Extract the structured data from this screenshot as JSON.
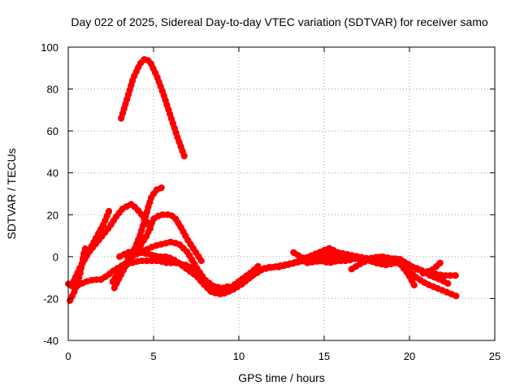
{
  "chart_data": {
    "type": "line",
    "title": "Day 022 of 2025, Sidereal Day-to-day VTEC variation (SDTVAR) for receiver samo",
    "xlabel": "GPS time / hours",
    "ylabel": "SDTVAR / TECUs",
    "xlim": [
      0,
      25
    ],
    "ylim": [
      -40,
      100
    ],
    "xticks": [
      0,
      5,
      10,
      15,
      20,
      25
    ],
    "yticks": [
      -40,
      -20,
      0,
      20,
      40,
      60,
      80,
      100
    ],
    "grid": true,
    "series_color": "#ff0000",
    "series": [
      {
        "name": "arc-high",
        "points": [
          [
            3.1,
            66
          ],
          [
            3.4,
            74
          ],
          [
            3.8,
            85
          ],
          [
            4.2,
            92
          ],
          [
            4.5,
            94.5
          ],
          [
            4.8,
            93
          ],
          [
            5.2,
            86
          ],
          [
            5.6,
            77
          ],
          [
            6.0,
            67
          ],
          [
            6.4,
            57
          ],
          [
            6.8,
            48
          ]
        ]
      },
      {
        "name": "arc-a",
        "points": [
          [
            0.2,
            -14
          ],
          [
            0.5,
            -9
          ],
          [
            0.9,
            -2
          ],
          [
            1.3,
            4
          ],
          [
            1.7,
            10
          ],
          [
            2.1,
            16
          ],
          [
            2.4,
            22
          ]
        ]
      },
      {
        "name": "arc-b",
        "points": [
          [
            0.3,
            -12
          ],
          [
            0.7,
            -5
          ],
          [
            1.2,
            2
          ],
          [
            1.6,
            6
          ],
          [
            2.0,
            10
          ],
          [
            2.4,
            14
          ],
          [
            2.8,
            19
          ],
          [
            3.2,
            23
          ],
          [
            3.7,
            25
          ],
          [
            4.0,
            23
          ],
          [
            4.4,
            19
          ],
          [
            4.9,
            13
          ]
        ]
      },
      {
        "name": "arc-c",
        "points": [
          [
            0.0,
            -13
          ],
          [
            0.5,
            -14
          ],
          [
            1.0,
            -12
          ],
          [
            1.5,
            -11
          ],
          [
            1.9,
            -11
          ],
          [
            2.3,
            -9
          ],
          [
            2.6,
            -7
          ],
          [
            3.0,
            -5
          ],
          [
            3.4,
            -3
          ],
          [
            3.8,
            1
          ],
          [
            4.2,
            5
          ],
          [
            4.6,
            10
          ],
          [
            5.0,
            18
          ],
          [
            5.4,
            20
          ],
          [
            6.0,
            20
          ],
          [
            6.3,
            18
          ],
          [
            6.6,
            14
          ],
          [
            7.0,
            8
          ],
          [
            7.4,
            3
          ],
          [
            7.8,
            -2
          ]
        ]
      },
      {
        "name": "arc-d",
        "points": [
          [
            2.7,
            -15
          ],
          [
            3.0,
            -10
          ],
          [
            3.4,
            -4
          ],
          [
            3.8,
            2
          ],
          [
            4.2,
            10
          ],
          [
            4.5,
            18
          ],
          [
            4.7,
            24
          ],
          [
            4.9,
            29
          ],
          [
            5.2,
            32
          ],
          [
            5.5,
            33
          ]
        ]
      },
      {
        "name": "arc-e",
        "points": [
          [
            0.1,
            -21
          ],
          [
            0.4,
            -16
          ],
          [
            0.7,
            -8
          ],
          [
            0.9,
            1
          ],
          [
            1.0,
            4
          ]
        ]
      },
      {
        "name": "arc-f",
        "points": [
          [
            3.0,
            0
          ],
          [
            3.5,
            2
          ],
          [
            4.0,
            3
          ],
          [
            4.5,
            3
          ],
          [
            5.0,
            5
          ],
          [
            5.5,
            6
          ],
          [
            6.0,
            7
          ],
          [
            6.5,
            6
          ],
          [
            7.0,
            2
          ],
          [
            7.5,
            -5
          ],
          [
            8.0,
            -11
          ],
          [
            8.5,
            -14
          ],
          [
            9.0,
            -15
          ],
          [
            9.5,
            -14
          ]
        ]
      },
      {
        "name": "arc-g",
        "points": [
          [
            2.6,
            -12
          ],
          [
            3.2,
            -4
          ],
          [
            3.7,
            -3
          ],
          [
            4.2,
            -2
          ],
          [
            4.8,
            -2
          ],
          [
            5.3,
            -2
          ],
          [
            5.8,
            -3
          ],
          [
            6.3,
            -3
          ],
          [
            6.9,
            -4
          ],
          [
            7.4,
            -6
          ],
          [
            7.8,
            -10
          ],
          [
            8.2,
            -15
          ],
          [
            8.7,
            -17
          ],
          [
            9.2,
            -17
          ],
          [
            9.8,
            -14
          ],
          [
            10.3,
            -12
          ],
          [
            10.8,
            -9
          ],
          [
            11.3,
            -6
          ],
          [
            11.8,
            -5
          ],
          [
            12.3,
            -5
          ],
          [
            12.8,
            -4
          ],
          [
            13.3,
            -3
          ],
          [
            13.8,
            -2
          ],
          [
            14.3,
            -1
          ],
          [
            14.8,
            -2
          ],
          [
            15.3,
            -3
          ],
          [
            15.8,
            -2
          ],
          [
            16.3,
            -2
          ],
          [
            16.8,
            -1
          ]
        ]
      },
      {
        "name": "arc-h",
        "points": [
          [
            3.5,
            -1
          ],
          [
            4.2,
            2
          ],
          [
            4.8,
            1
          ],
          [
            5.3,
            0
          ],
          [
            5.8,
            0
          ],
          [
            6.3,
            -2
          ],
          [
            6.8,
            -5
          ],
          [
            7.3,
            -8
          ],
          [
            7.8,
            -11
          ],
          [
            8.3,
            -15
          ],
          [
            8.8,
            -17
          ],
          [
            9.3,
            -16
          ],
          [
            9.8,
            -13
          ],
          [
            10.3,
            -10
          ],
          [
            10.8,
            -7
          ],
          [
            11.2,
            -4
          ]
        ]
      },
      {
        "name": "arc-i",
        "points": [
          [
            7.2,
            -6
          ],
          [
            7.8,
            -12
          ],
          [
            8.4,
            -17
          ],
          [
            9.0,
            -18
          ],
          [
            9.6,
            -16
          ],
          [
            10.2,
            -13
          ],
          [
            10.8,
            -9
          ],
          [
            11.4,
            -6
          ],
          [
            12.0,
            -5
          ],
          [
            12.6,
            -4
          ],
          [
            13.2,
            -3
          ],
          [
            13.8,
            -1
          ],
          [
            14.4,
            0
          ],
          [
            15.0,
            1
          ],
          [
            15.4,
            2
          ],
          [
            15.8,
            1
          ],
          [
            16.4,
            0
          ],
          [
            17.0,
            -1
          ],
          [
            17.6,
            -2
          ],
          [
            18.2,
            -2
          ],
          [
            18.8,
            -2
          ],
          [
            19.4,
            -2
          ],
          [
            20.0,
            -4
          ],
          [
            20.4,
            -6
          ],
          [
            20.8,
            -7
          ],
          [
            21.4,
            -8
          ],
          [
            22.0,
            -9
          ],
          [
            22.8,
            -9
          ]
        ]
      },
      {
        "name": "arc-j",
        "points": [
          [
            13.2,
            2
          ],
          [
            13.8,
            -1
          ],
          [
            14.4,
            1
          ],
          [
            15.0,
            3
          ],
          [
            15.3,
            4
          ],
          [
            15.8,
            2
          ],
          [
            16.4,
            1
          ],
          [
            17.0,
            0
          ],
          [
            17.6,
            -1
          ],
          [
            18.2,
            0
          ],
          [
            18.8,
            -1
          ],
          [
            19.4,
            -1
          ],
          [
            19.8,
            -3
          ],
          [
            20.2,
            -5
          ],
          [
            20.6,
            -6
          ],
          [
            21.2,
            -9
          ],
          [
            21.8,
            -11
          ],
          [
            22.3,
            -13
          ]
        ]
      },
      {
        "name": "arc-k",
        "points": [
          [
            14.0,
            -3
          ],
          [
            14.8,
            -2
          ],
          [
            15.6,
            -2
          ],
          [
            16.4,
            -1
          ],
          [
            17.2,
            -1
          ],
          [
            18.0,
            -1
          ],
          [
            18.8,
            -2
          ],
          [
            19.2,
            -1
          ],
          [
            19.6,
            -3
          ],
          [
            20.0,
            -7
          ],
          [
            20.4,
            -10
          ],
          [
            21.0,
            -13
          ],
          [
            21.6,
            -15
          ],
          [
            22.2,
            -17
          ],
          [
            22.8,
            -19
          ]
        ]
      },
      {
        "name": "arc-l",
        "points": [
          [
            16.6,
            -6
          ],
          [
            17.2,
            -3
          ],
          [
            17.8,
            -1
          ],
          [
            18.4,
            0
          ],
          [
            19.0,
            -1
          ],
          [
            19.5,
            -4
          ],
          [
            19.9,
            -8
          ],
          [
            20.3,
            -14
          ]
        ]
      },
      {
        "name": "arc-m",
        "points": [
          [
            20.8,
            -8
          ],
          [
            21.4,
            -6
          ],
          [
            21.8,
            -3
          ]
        ]
      },
      {
        "name": "arc-n",
        "points": [
          [
            15.0,
            0
          ],
          [
            15.6,
            -1
          ],
          [
            16.2,
            0
          ],
          [
            16.8,
            0
          ],
          [
            17.4,
            -1
          ],
          [
            18.0,
            -3
          ],
          [
            18.6,
            -4
          ],
          [
            19.2,
            -3
          ]
        ]
      }
    ]
  }
}
